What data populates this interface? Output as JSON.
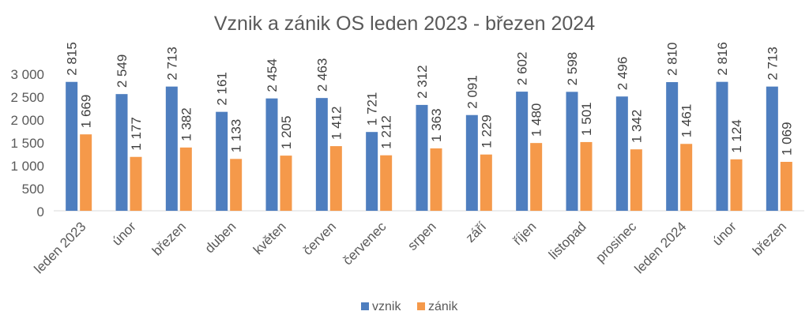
{
  "chart_data": {
    "type": "bar",
    "title": "Vznik a zánik OS leden 2023 - březen 2024",
    "categories": [
      "leden 2023",
      "únor",
      "březen",
      "duben",
      "květen",
      "červen",
      "červenec",
      "srpen",
      "září",
      "říjen",
      "listopad",
      "prosinec",
      "leden 2024",
      "únor",
      "březen"
    ],
    "series": [
      {
        "name": "vznik",
        "color": "#4e7ebf",
        "values": [
          2815,
          2549,
          2713,
          2161,
          2454,
          2463,
          1721,
          2312,
          2091,
          2602,
          2598,
          2496,
          2810,
          2816,
          2713
        ],
        "labels": [
          "2 815",
          "2 549",
          "2 713",
          "2 161",
          "2 454",
          "2 463",
          "1 721",
          "2 312",
          "2 091",
          "2 602",
          "2 598",
          "2 496",
          "2 810",
          "2 816",
          "2 713"
        ]
      },
      {
        "name": "zánik",
        "color": "#f5994a",
        "values": [
          1669,
          1177,
          1382,
          1133,
          1205,
          1412,
          1212,
          1363,
          1229,
          1480,
          1501,
          1342,
          1461,
          1124,
          1069
        ],
        "labels": [
          "1 669",
          "1 177",
          "1 382",
          "1 133",
          "1 205",
          "1 412",
          "1 212",
          "1 363",
          "1 229",
          "1 480",
          "1 501",
          "1 342",
          "1 461",
          "1 124",
          "1 069"
        ]
      }
    ],
    "ylim": [
      0,
      3000
    ],
    "yticks": [
      0,
      500,
      1000,
      1500,
      2000,
      2500,
      3000
    ],
    "ytick_labels": [
      "0",
      "500",
      "1 000",
      "1 500",
      "2 000",
      "2 500",
      "3 000"
    ],
    "xlabel": "",
    "ylabel": "",
    "grid": false,
    "legend": "bottom"
  }
}
